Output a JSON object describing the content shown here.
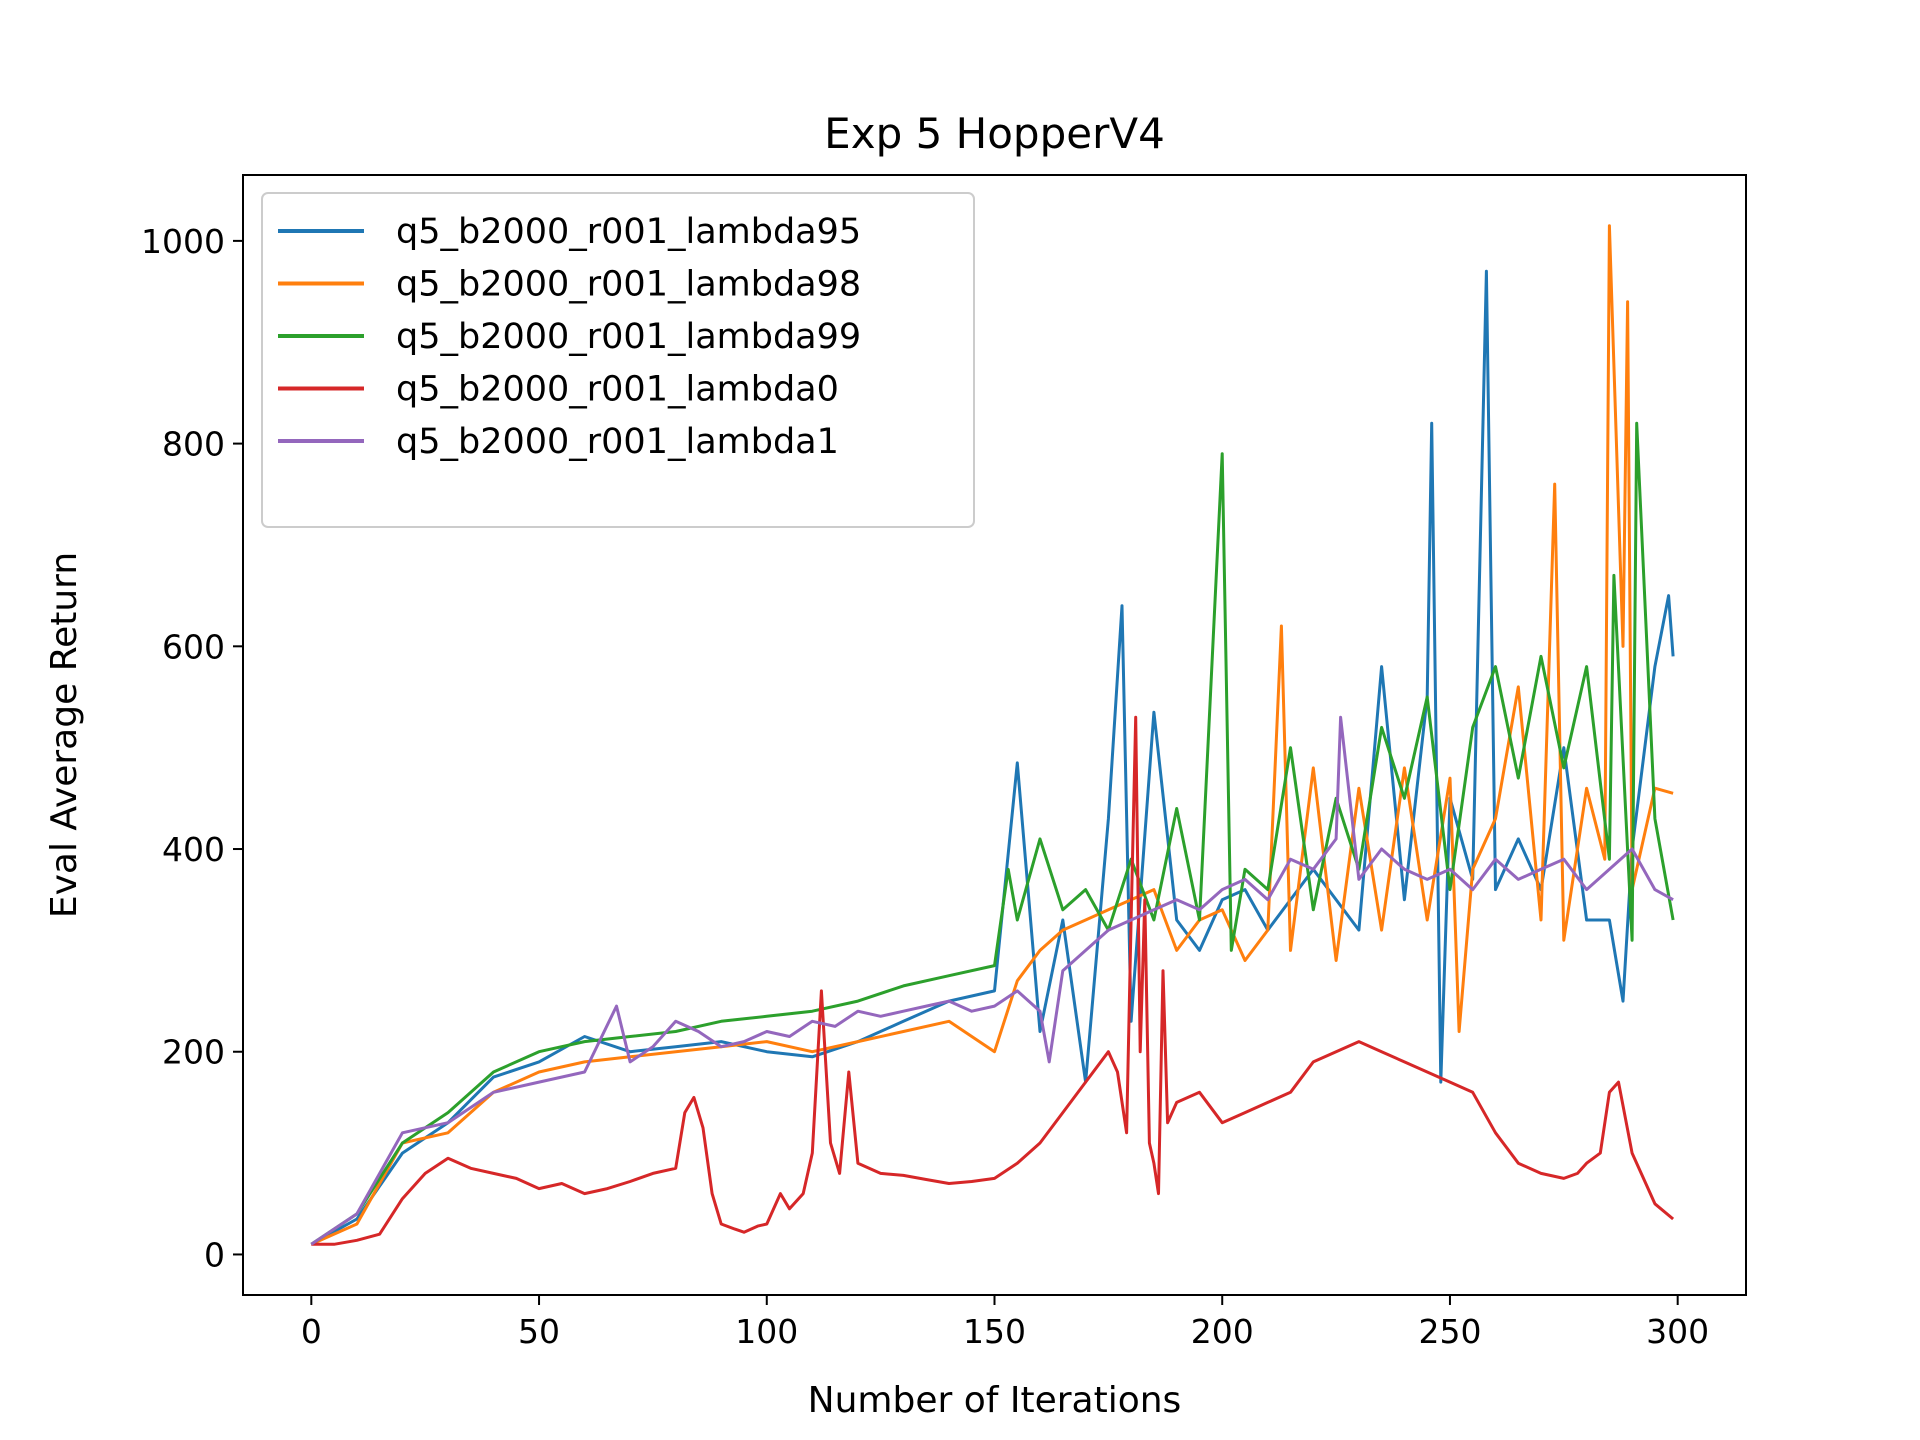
{
  "chart_data": {
    "type": "line",
    "title": "Exp 5 HopperV4",
    "xlabel": "Number of Iterations",
    "ylabel": "Eval Average Return",
    "xlim": [
      -15,
      315
    ],
    "ylim": [
      -40,
      1065
    ],
    "xticks": [
      0,
      50,
      100,
      150,
      200,
      250,
      300
    ],
    "yticks": [
      0,
      200,
      400,
      600,
      800,
      1000
    ],
    "grid": false,
    "legend_position": "upper-left",
    "series": [
      {
        "name": "q5_b2000_r001_lambda95",
        "color": "#1f77b4",
        "x": [
          0,
          10,
          20,
          30,
          40,
          50,
          60,
          70,
          80,
          90,
          100,
          110,
          120,
          130,
          140,
          150,
          155,
          160,
          165,
          170,
          175,
          178,
          180,
          185,
          190,
          195,
          200,
          205,
          210,
          220,
          230,
          235,
          240,
          245,
          246,
          248,
          250,
          255,
          258,
          260,
          265,
          270,
          275,
          280,
          285,
          288,
          290,
          295,
          298,
          299
        ],
        "y": [
          10,
          35,
          100,
          130,
          175,
          190,
          215,
          200,
          205,
          210,
          200,
          195,
          210,
          230,
          250,
          260,
          485,
          220,
          330,
          170,
          430,
          640,
          230,
          535,
          330,
          300,
          350,
          360,
          320,
          380,
          320,
          580,
          350,
          550,
          820,
          170,
          450,
          370,
          970,
          360,
          410,
          360,
          500,
          330,
          330,
          250,
          400,
          580,
          650,
          590
        ]
      },
      {
        "name": "q5_b2000_r001_lambda98",
        "color": "#ff7f0e",
        "x": [
          0,
          10,
          20,
          30,
          40,
          50,
          60,
          70,
          80,
          90,
          100,
          110,
          120,
          130,
          140,
          150,
          155,
          160,
          165,
          170,
          175,
          180,
          185,
          190,
          195,
          200,
          205,
          210,
          213,
          215,
          220,
          225,
          230,
          235,
          240,
          245,
          250,
          252,
          255,
          260,
          265,
          270,
          273,
          275,
          280,
          284,
          285,
          288,
          289,
          290,
          295,
          299
        ],
        "y": [
          10,
          30,
          110,
          120,
          160,
          180,
          190,
          195,
          200,
          205,
          210,
          200,
          210,
          220,
          230,
          200,
          270,
          300,
          320,
          330,
          340,
          350,
          360,
          300,
          330,
          340,
          290,
          320,
          620,
          300,
          480,
          290,
          460,
          320,
          480,
          330,
          470,
          220,
          380,
          430,
          560,
          330,
          760,
          310,
          460,
          390,
          1015,
          600,
          940,
          360,
          460,
          455
        ]
      },
      {
        "name": "q5_b2000_r001_lambda99",
        "color": "#2ca02c",
        "x": [
          0,
          10,
          20,
          30,
          40,
          50,
          60,
          70,
          80,
          90,
          100,
          110,
          120,
          130,
          140,
          150,
          153,
          155,
          160,
          165,
          170,
          175,
          180,
          185,
          190,
          195,
          200,
          202,
          205,
          210,
          215,
          220,
          225,
          230,
          235,
          240,
          245,
          250,
          255,
          260,
          265,
          270,
          275,
          280,
          285,
          286,
          290,
          291,
          295,
          299
        ],
        "y": [
          10,
          40,
          110,
          140,
          180,
          200,
          210,
          215,
          220,
          230,
          235,
          240,
          250,
          265,
          275,
          285,
          380,
          330,
          410,
          340,
          360,
          320,
          390,
          330,
          440,
          330,
          790,
          300,
          380,
          360,
          500,
          340,
          450,
          380,
          520,
          450,
          550,
          360,
          520,
          580,
          470,
          590,
          480,
          580,
          390,
          670,
          310,
          820,
          430,
          330
        ]
      },
      {
        "name": "q5_b2000_r001_lambda0",
        "color": "#d62728",
        "x": [
          0,
          5,
          10,
          15,
          20,
          25,
          30,
          35,
          40,
          45,
          50,
          55,
          60,
          65,
          70,
          75,
          80,
          82,
          84,
          86,
          88,
          90,
          93,
          95,
          98,
          100,
          103,
          105,
          108,
          110,
          112,
          114,
          116,
          118,
          120,
          125,
          130,
          135,
          140,
          145,
          150,
          155,
          160,
          165,
          170,
          175,
          177,
          179,
          180,
          181,
          182,
          183,
          184,
          185,
          186,
          187,
          188,
          190,
          195,
          200,
          205,
          210,
          215,
          220,
          225,
          230,
          235,
          240,
          245,
          250,
          255,
          260,
          265,
          270,
          275,
          278,
          280,
          283,
          285,
          287,
          290,
          293,
          295,
          299
        ],
        "y": [
          10,
          10,
          14,
          20,
          55,
          80,
          95,
          85,
          80,
          75,
          65,
          70,
          60,
          65,
          72,
          80,
          85,
          140,
          155,
          125,
          60,
          30,
          25,
          22,
          28,
          30,
          60,
          45,
          60,
          100,
          260,
          110,
          80,
          180,
          90,
          80,
          78,
          74,
          70,
          72,
          75,
          90,
          110,
          140,
          170,
          200,
          180,
          120,
          330,
          530,
          200,
          350,
          110,
          90,
          60,
          280,
          130,
          150,
          160,
          130,
          140,
          150,
          160,
          190,
          200,
          210,
          200,
          190,
          180,
          170,
          160,
          120,
          90,
          80,
          75,
          80,
          90,
          100,
          160,
          170,
          100,
          70,
          50,
          35
        ]
      },
      {
        "name": "q5_b2000_r001_lambda1",
        "color": "#9467bd",
        "x": [
          0,
          10,
          20,
          30,
          40,
          50,
          60,
          67,
          70,
          75,
          80,
          85,
          90,
          95,
          100,
          105,
          110,
          115,
          120,
          125,
          130,
          135,
          140,
          145,
          150,
          155,
          160,
          162,
          165,
          170,
          175,
          180,
          185,
          190,
          195,
          200,
          205,
          210,
          215,
          220,
          225,
          226,
          230,
          235,
          240,
          245,
          250,
          255,
          260,
          265,
          270,
          275,
          280,
          285,
          290,
          295,
          299
        ],
        "y": [
          10,
          40,
          120,
          130,
          160,
          170,
          180,
          245,
          190,
          205,
          230,
          220,
          205,
          210,
          220,
          215,
          230,
          225,
          240,
          235,
          240,
          245,
          250,
          240,
          245,
          260,
          240,
          190,
          280,
          300,
          320,
          330,
          340,
          350,
          340,
          360,
          370,
          350,
          390,
          380,
          410,
          530,
          370,
          400,
          380,
          370,
          380,
          360,
          390,
          370,
          380,
          390,
          360,
          380,
          400,
          360,
          350
        ]
      }
    ]
  }
}
